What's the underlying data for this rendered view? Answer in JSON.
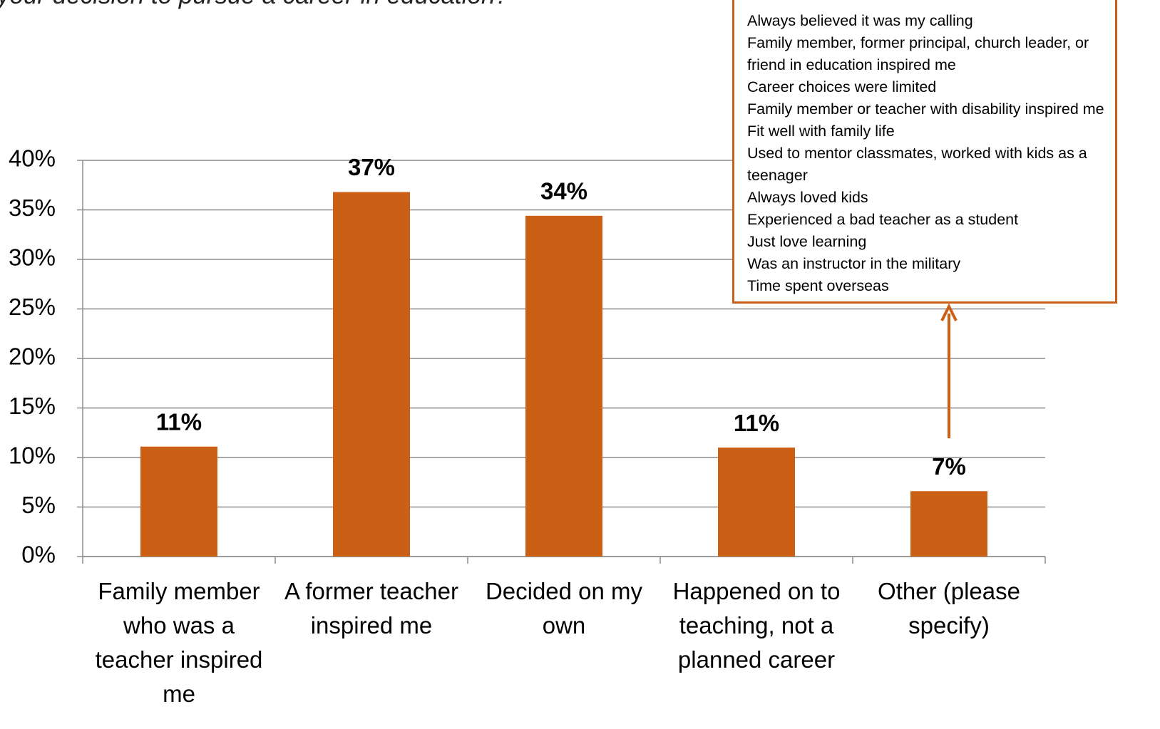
{
  "chart_data": {
    "type": "bar",
    "title": "your decision to pursue a career in education?",
    "categories": [
      "Family member who was a teacher inspired me",
      "A former teacher inspired me",
      "Decided on my own",
      "Happened on to teaching, not a planned career",
      "Other (please specify)"
    ],
    "values": [
      11.1,
      36.8,
      34.4,
      11.0,
      6.6
    ],
    "value_labels": [
      "11%",
      "37%",
      "34%",
      "11%",
      "7%"
    ],
    "color": "#cc5f16",
    "ylim": [
      0,
      40
    ],
    "yticks": [
      {
        "value": 0,
        "label": "0%"
      },
      {
        "value": 5,
        "label": "5%"
      },
      {
        "value": 10,
        "label": "10%"
      },
      {
        "value": 15,
        "label": "15%"
      },
      {
        "value": 20,
        "label": "20%"
      },
      {
        "value": 25,
        "label": "25%"
      },
      {
        "value": 30,
        "label": "30%"
      },
      {
        "value": 35,
        "label": "35%"
      },
      {
        "value": 40,
        "label": "40%"
      }
    ],
    "grid": true,
    "annotation": [
      "Always believed it was my calling",
      "Family member, former principal, church leader, or friend in education inspired me",
      "Career choices were limited",
      "Family member or teacher with disability inspired me",
      "Fit well with family life",
      "Used to mentor classmates, worked with kids as a teenager",
      "Always loved kids",
      "Experienced a bad teacher as a student",
      "Just love learning",
      "Was an instructor in the military",
      "Time spent overseas"
    ]
  }
}
